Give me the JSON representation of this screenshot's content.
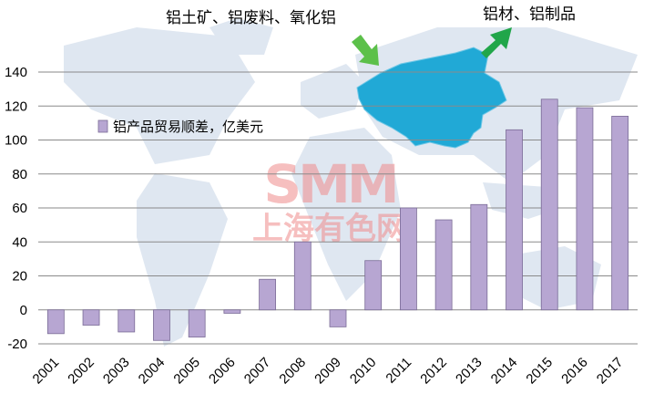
{
  "chart_data": {
    "type": "bar",
    "title": "",
    "xlabel": "",
    "ylabel": "",
    "categories": [
      "2001",
      "2002",
      "2003",
      "2004",
      "2005",
      "2006",
      "2007",
      "2008",
      "2009",
      "2010",
      "2011",
      "2012",
      "2013",
      "2014",
      "2015",
      "2016",
      "2017"
    ],
    "series": [
      {
        "name": "铝产品贸易顺差，亿美元",
        "values": [
          -14,
          -9,
          -13,
          -18,
          -16,
          -2,
          18,
          40,
          -10,
          29,
          60,
          53,
          62,
          106,
          124,
          119,
          114
        ],
        "color": "#b7a6d2"
      }
    ],
    "ylim": [
      -20,
      140
    ],
    "yticks": [
      -20,
      0,
      20,
      40,
      60,
      80,
      100,
      120,
      140
    ],
    "ytick_labels": [
      "-20",
      "0",
      "20",
      "40",
      "60",
      "80",
      "100",
      "120",
      "140"
    ],
    "grid": true,
    "legend_position": "upper-left"
  },
  "annotations": {
    "imports_label": "铝土矿、铝废料、氧化铝",
    "exports_label": "铝材、铝制品"
  },
  "watermark": {
    "logo": "SMM",
    "text": "上海有色网"
  },
  "colors": {
    "bar_fill": "#b7a6d2",
    "bar_stroke": "#7a6b96",
    "grid": "#8a8a8a",
    "map_land": "#dfe7f1",
    "china": "#21a9d6",
    "arrow": "#5cc04a",
    "watermark": "#f08c8c"
  }
}
